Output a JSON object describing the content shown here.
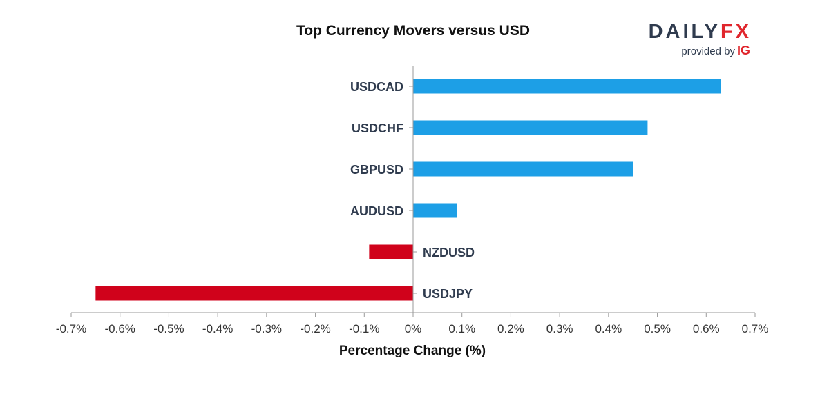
{
  "brand": {
    "word_daily": "DAILY",
    "word_fx": "FX",
    "provided_by": "provided by",
    "ig": "IG",
    "colors": {
      "daily": "#2f3b4e",
      "fx": "#e0262d"
    }
  },
  "chart_data": {
    "type": "bar",
    "orientation": "horizontal",
    "title": "Top Currency Movers versus USD",
    "xlabel": "Percentage Change (%)",
    "ylabel": "",
    "categories": [
      "USDCAD",
      "USDCHF",
      "GBPUSD",
      "AUDUSD",
      "NZDUSD",
      "USDJPY"
    ],
    "values": [
      0.63,
      0.48,
      0.45,
      0.09,
      -0.09,
      -0.65
    ],
    "xlim": [
      -0.7,
      0.7
    ],
    "xticks": [
      -0.7,
      -0.6,
      -0.5,
      -0.4,
      -0.3,
      -0.2,
      -0.1,
      0,
      0.1,
      0.2,
      0.3,
      0.4,
      0.5,
      0.6,
      0.7
    ],
    "xtick_labels": [
      "-0.7%",
      "-0.6%",
      "-0.5%",
      "-0.4%",
      "-0.3%",
      "-0.2%",
      "-0.1%",
      "0%",
      "0.1%",
      "0.2%",
      "0.3%",
      "0.4%",
      "0.5%",
      "0.6%",
      "0.7%"
    ],
    "colors": {
      "positive": "#1d9fe6",
      "negative": "#d0021b"
    },
    "grid": false,
    "legend": "none"
  }
}
